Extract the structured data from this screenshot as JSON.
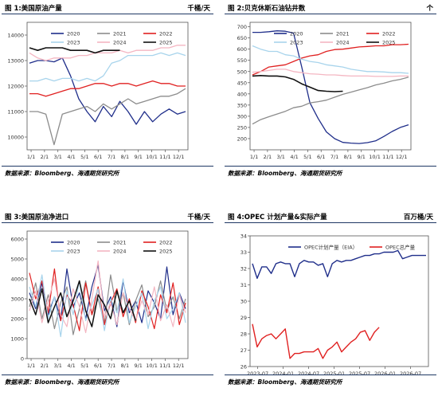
{
  "panels": [
    {
      "title": "图 1:美国原油产量",
      "unit": "千桶/天",
      "source": "数据来源：Bloomberg、海通期货研究所"
    },
    {
      "title": "图 2:贝克休斯石油钻井数",
      "unit": "个",
      "source": "数据来源：Bloomberg、海通期货研究所"
    },
    {
      "title": "图 3:美国原油净进口",
      "unit": "千桶/天",
      "source": "数据来源：Bloomberg、海通期货研究所"
    },
    {
      "title": "图 4:OPEC 计划产量&实际产量",
      "unit": "百万桶/天",
      "source": "数据来源：Bloomberg、海通期货研究所"
    }
  ],
  "chart_data": [
    {
      "type": "line",
      "ylim": [
        9500,
        14500
      ],
      "yticks": [
        10000,
        11000,
        12000,
        13000,
        14000
      ],
      "xticks": [
        "1/1",
        "2/1",
        "3/1",
        "4/1",
        "5/1",
        "6/1",
        "7/1",
        "8/1",
        "9/1",
        "10/1",
        "11/1",
        "12/1"
      ],
      "grid": false,
      "legend": "top",
      "series": [
        {
          "name": "2020",
          "color": "#1f2e8a",
          "width": 1.3,
          "values": [
            12900,
            13000,
            13000,
            12950,
            13100,
            12400,
            11500,
            11000,
            10600,
            11200,
            10800,
            11400,
            11000,
            10500,
            11000,
            10600,
            10900,
            11100,
            10900,
            11000
          ]
        },
        {
          "name": "2021",
          "color": "#8c8c8c",
          "width": 1.3,
          "values": [
            11000,
            11000,
            10900,
            9700,
            10900,
            11000,
            11100,
            11200,
            11000,
            11300,
            11100,
            11300,
            11500,
            11300,
            11400,
            11500,
            11600,
            11600,
            11700,
            11900
          ]
        },
        {
          "name": "2022",
          "color": "#e02020",
          "width": 1.3,
          "values": [
            11700,
            11700,
            11600,
            11700,
            11800,
            11900,
            11900,
            12000,
            12100,
            12100,
            12000,
            12100,
            12100,
            12000,
            12100,
            12200,
            12100,
            12100,
            12000,
            12000
          ]
        },
        {
          "name": "2023",
          "color": "#a8d4ec",
          "width": 1.3,
          "values": [
            12200,
            12200,
            12300,
            12200,
            12300,
            12300,
            12200,
            12300,
            12200,
            12400,
            12900,
            13000,
            13200,
            13200,
            13200,
            13200,
            13300,
            13200,
            13300,
            13200
          ]
        },
        {
          "name": "2024",
          "color": "#f4b6c2",
          "width": 1.3,
          "values": [
            13300,
            13100,
            13000,
            13100,
            13100,
            13100,
            13200,
            13200,
            13300,
            13300,
            13300,
            13400,
            13300,
            13400,
            13400,
            13400,
            13500,
            13500,
            13600,
            13600
          ]
        },
        {
          "name": "2025",
          "color": "#111111",
          "width": 1.6,
          "values": [
            13500,
            13400,
            13500,
            13500,
            13500,
            13400,
            13400,
            13400,
            13300,
            13400,
            13400,
            13400
          ]
        }
      ]
    },
    {
      "type": "line",
      "ylim": [
        150,
        720
      ],
      "yticks": [
        200,
        250,
        300,
        350,
        400,
        450,
        500,
        550,
        600,
        650,
        700
      ],
      "xticks": [
        "1/1",
        "2/1",
        "3/1",
        "4/1",
        "5/1",
        "6/1",
        "7/1",
        "8/1",
        "9/1",
        "10/1",
        "11/1",
        "12/1"
      ],
      "grid": false,
      "legend": "top",
      "series": [
        {
          "name": "2020",
          "color": "#1f2e8a",
          "width": 1.3,
          "values": [
            675,
            675,
            678,
            682,
            680,
            672,
            520,
            360,
            290,
            230,
            200,
            183,
            180,
            178,
            182,
            190,
            210,
            232,
            250,
            262
          ]
        },
        {
          "name": "2021",
          "color": "#8c8c8c",
          "width": 1.3,
          "values": [
            265,
            285,
            298,
            310,
            322,
            338,
            345,
            360,
            365,
            372,
            385,
            398,
            408,
            418,
            428,
            440,
            448,
            458,
            465,
            475
          ]
        },
        {
          "name": "2022",
          "color": "#e02020",
          "width": 1.3,
          "values": [
            485,
            500,
            520,
            525,
            530,
            545,
            560,
            570,
            575,
            590,
            598,
            600,
            605,
            610,
            612,
            615,
            615,
            620,
            620,
            622
          ]
        },
        {
          "name": "2023",
          "color": "#a8d4ec",
          "width": 1.3,
          "values": [
            615,
            600,
            590,
            590,
            575,
            570,
            555,
            545,
            540,
            530,
            525,
            520,
            510,
            505,
            500,
            500,
            498,
            495,
            495,
            492
          ]
        },
        {
          "name": "2024",
          "color": "#f4b6c2",
          "width": 1.3,
          "values": [
            497,
            500,
            505,
            510,
            510,
            500,
            495,
            490,
            488,
            485,
            485,
            482,
            480,
            480,
            480,
            478,
            478,
            478,
            480,
            480
          ]
        },
        {
          "name": "2025",
          "color": "#111111",
          "width": 1.6,
          "values": [
            480,
            482,
            480,
            480,
            476,
            465,
            445,
            430,
            415,
            412,
            410,
            412
          ]
        }
      ]
    },
    {
      "type": "line",
      "ylim": [
        0,
        6400
      ],
      "yticks": [
        0,
        1000,
        2000,
        3000,
        4000,
        5000,
        6000
      ],
      "xticks": [
        "1/1",
        "2/1",
        "3/1",
        "4/1",
        "5/1",
        "6/1",
        "7/1",
        "8/1",
        "9/1",
        "10/1",
        "11/1",
        "12/1"
      ],
      "grid": false,
      "legend": "top",
      "series": [
        {
          "name": "2020",
          "color": "#1f2e8a",
          "width": 1.2,
          "values": [
            3300,
            2500,
            3800,
            2200,
            3100,
            1900,
            4500,
            2600,
            3300,
            2000,
            3600,
            4700,
            2400,
            3100,
            1600,
            3900,
            2300,
            2900,
            1800,
            3400,
            2800,
            2000,
            4600,
            2200,
            3300,
            2500
          ]
        },
        {
          "name": "2021",
          "color": "#8c8c8c",
          "width": 1.2,
          "values": [
            2600,
            3800,
            2000,
            3200,
            1500,
            2800,
            3600,
            1200,
            2500,
            3900,
            2200,
            3000,
            1800,
            4200,
            2400,
            3300,
            1700,
            2900,
            3700,
            2100,
            2600,
            3900,
            2400,
            3100,
            2000,
            3000
          ]
        },
        {
          "name": "2022",
          "color": "#e02020",
          "width": 1.2,
          "values": [
            4300,
            3000,
            3900,
            2300,
            4500,
            1900,
            3200,
            2700,
            1400,
            3800,
            2200,
            3600,
            1700,
            2800,
            3500,
            2100,
            3000,
            1800,
            3400,
            2600,
            1500,
            3200,
            2300,
            3800,
            1700,
            2800
          ]
        },
        {
          "name": "2023",
          "color": "#a8d4ec",
          "width": 1.2,
          "values": [
            3600,
            2600,
            4200,
            2000,
            3100,
            1100,
            3400,
            2200,
            3900,
            1900,
            2700,
            3500,
            1400,
            3000,
            2300,
            4000,
            1800,
            2600,
            3300,
            1500,
            2900,
            3600,
            2000,
            2500,
            3300,
            1800
          ]
        },
        {
          "name": "2024",
          "color": "#f4b6c2",
          "width": 1.2,
          "values": [
            2400,
            3400,
            1800,
            2900,
            4000,
            2200,
            1600,
            3500,
            2600,
            1300,
            3000,
            4900,
            2100,
            2800,
            1700,
            3300,
            2500,
            1900,
            2900,
            2200,
            3600,
            1900,
            2700,
            1600,
            3200,
            2300
          ]
        },
        {
          "name": "2025",
          "color": "#111111",
          "width": 1.5,
          "values": [
            3000,
            2200,
            3500,
            1800,
            2600,
            3300,
            2100,
            2900,
            3900,
            2400,
            1600,
            3200,
            2700,
            2000,
            3400,
            2300,
            2900,
            1900
          ]
        }
      ]
    },
    {
      "type": "line",
      "ylim": [
        26,
        34
      ],
      "yticks": [
        26,
        27,
        28,
        29,
        30,
        31,
        32,
        33,
        34
      ],
      "xticks": [
        "2023-07",
        "2024-01",
        "2024-07",
        "2025-01",
        "2025-07",
        "2026-01",
        "2026-07"
      ],
      "grid": false,
      "legend": "top",
      "series": [
        {
          "name": "OPEC计划产量（EIA）",
          "color": "#1f2e8a",
          "width": 1.4,
          "values": [
            32.3,
            31.4,
            32.1,
            32.1,
            31.7,
            32.3,
            32.4,
            32.3,
            32.3,
            31.5,
            32.3,
            32.5,
            32.4,
            32.4,
            32.2,
            32.3,
            31.5,
            32.3,
            32.5,
            32.4,
            32.5,
            32.5,
            32.6,
            32.7,
            32.8,
            32.8,
            32.9,
            32.9,
            33.0,
            33.0,
            33.0,
            33.1,
            32.6,
            32.7,
            32.8,
            32.8,
            32.8,
            32.8
          ]
        },
        {
          "name": "OPEC总产量",
          "color": "#e02020",
          "width": 1.4,
          "values": [
            28.6,
            27.2,
            27.7,
            27.9,
            28.0,
            27.7,
            28.0,
            28.3,
            26.5,
            26.8,
            26.8,
            26.9,
            26.9,
            26.9,
            27.1,
            26.5,
            27.0,
            27.2,
            27.5,
            26.9,
            27.2,
            27.5,
            27.7,
            28.1,
            28.2,
            27.6,
            28.1,
            28.4
          ]
        }
      ]
    }
  ]
}
